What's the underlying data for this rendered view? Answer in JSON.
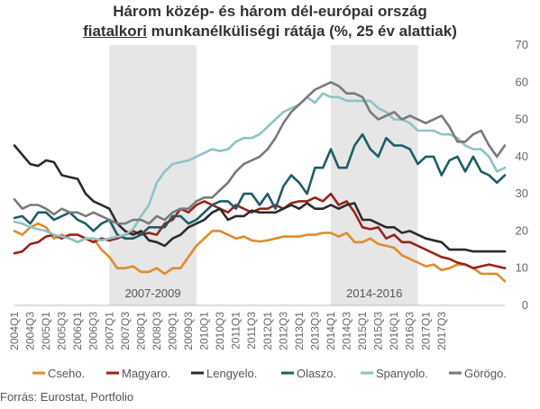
{
  "chart_data": {
    "type": "line",
    "title_line1": "Három közép- és három dél-európai ország",
    "title_line2_underlined": "fiatalkori",
    "title_line2_rest": " munkanélküliségi rátája (%, 25 év alattiak)",
    "source": "Forrás: Eurostat, Portfolio",
    "ylim": [
      0,
      70
    ],
    "y_ticks": [
      "0",
      "10",
      "20",
      "30",
      "40",
      "50",
      "60",
      "70"
    ],
    "x_ticks": [
      "2004Q1",
      "2004Q3",
      "2005Q1",
      "2005Q3",
      "2006Q1",
      "2006Q3",
      "2007Q1",
      "2007Q3",
      "2008Q1",
      "2008Q3",
      "2009Q1",
      "2009Q3",
      "2010Q1",
      "2010Q3",
      "2011Q1",
      "2011Q3",
      "2012Q1",
      "2012Q3",
      "2013Q1",
      "2013Q3",
      "2014Q1",
      "2014Q3",
      "2015Q1",
      "2015Q3",
      "2016Q1",
      "2016Q3",
      "2017Q1",
      "2017Q3"
    ],
    "shaded_periods": [
      {
        "label": "2007-2009",
        "start": "2007Q1",
        "end": "2009Q4"
      },
      {
        "label": "2014-2016",
        "start": "2014Q1",
        "end": "2016Q4"
      }
    ],
    "series": [
      {
        "name": "Cseho.",
        "color": "#e08a2e",
        "values": [
          20,
          19,
          21,
          22,
          21,
          18,
          19,
          18,
          17,
          18,
          18,
          15,
          13,
          10,
          10,
          10.5,
          9,
          9,
          10,
          8.5,
          10,
          10,
          13,
          16,
          18,
          20,
          20,
          19,
          18,
          18.5,
          17.5,
          17.2,
          17.5,
          18,
          18.5,
          18.5,
          18.5,
          19,
          19,
          19.5,
          19.5,
          18.5,
          19.5,
          17,
          17,
          18,
          16.5,
          16,
          15.5,
          13.5,
          12.5,
          11.5,
          10.5,
          11,
          9.5,
          10,
          11,
          11,
          10,
          8.5,
          8.5,
          8.5,
          6.5
        ]
      },
      {
        "name": "Magyaro.",
        "color": "#9b2318",
        "values": [
          14,
          14.5,
          16.5,
          17,
          18.5,
          19,
          18,
          19,
          19,
          18,
          17,
          18,
          17.5,
          18,
          19,
          20,
          19,
          19.5,
          19,
          22,
          23,
          26,
          25,
          27,
          28,
          27,
          26,
          25,
          27,
          26,
          25,
          26,
          26,
          27,
          26,
          27.5,
          28,
          28,
          29,
          28,
          30,
          27,
          28,
          25,
          21,
          20.5,
          21,
          18,
          19,
          17,
          17,
          16,
          15,
          14,
          13,
          12.5,
          11.5,
          11,
          10,
          10.5,
          11,
          10.5,
          10
        ]
      },
      {
        "name": "Lengyelo.",
        "color": "#2b2b2b",
        "values": [
          43,
          40.5,
          38,
          37.5,
          39,
          38.5,
          35,
          34.5,
          34,
          30,
          28,
          27,
          26,
          22,
          20,
          19,
          20,
          17.5,
          17,
          16,
          18,
          19,
          21,
          22,
          23,
          25,
          26,
          23,
          24,
          24,
          25.5,
          25,
          25,
          25,
          26,
          27,
          26,
          27.5,
          26,
          26,
          27,
          26,
          27,
          27.5,
          23,
          23,
          22,
          21,
          21,
          19.5,
          20,
          19,
          18,
          17.5,
          17,
          15,
          15,
          15,
          14.5,
          14.5,
          14.5,
          14.5,
          14.5
        ]
      },
      {
        "name": "Olaszo.",
        "color": "#1f5c66",
        "values": [
          23.5,
          24,
          22,
          25,
          25,
          23,
          24,
          25,
          23,
          22,
          20,
          22,
          23,
          19,
          18,
          18,
          19,
          21,
          21,
          21,
          24,
          24,
          22,
          23,
          25,
          27,
          28,
          28,
          26,
          30,
          30,
          27,
          30,
          26,
          32,
          35,
          33,
          30,
          37,
          37,
          42,
          37,
          37,
          43,
          46,
          42,
          40,
          45,
          43,
          43,
          42,
          38,
          40,
          40,
          35,
          39,
          40,
          36,
          40,
          36,
          35,
          33,
          35
        ]
      },
      {
        "name": "Spanyolo.",
        "color": "#8fc3c7",
        "values": [
          22.5,
          22,
          21,
          20.5,
          20,
          19,
          18.5,
          18,
          17,
          18,
          18,
          17.5,
          18,
          18.5,
          19,
          20.5,
          24,
          27,
          33,
          36,
          38,
          38.5,
          39,
          40,
          41,
          42,
          41.5,
          42,
          44,
          45,
          45,
          46,
          48,
          50,
          52,
          53,
          54,
          56,
          54.5,
          57,
          56,
          56,
          55,
          55,
          55,
          55,
          53,
          52,
          50,
          50,
          49,
          47,
          47,
          47,
          46,
          46,
          45,
          43,
          42,
          42,
          40,
          36,
          37
        ]
      },
      {
        "name": "Görögo.",
        "color": "#7a7a7a",
        "values": [
          28.5,
          26,
          27,
          27,
          26,
          24.5,
          26,
          25,
          25,
          24,
          25,
          24,
          23,
          22,
          22,
          23,
          23,
          22,
          24,
          23,
          25,
          26,
          26,
          28,
          29,
          29,
          31,
          33,
          36,
          38,
          39,
          40,
          42,
          45,
          49,
          52,
          54,
          56,
          58,
          59,
          60,
          59,
          57,
          57,
          56,
          52,
          50,
          51,
          52,
          50,
          51,
          50,
          49,
          50,
          51,
          48,
          44,
          44,
          46,
          47,
          43,
          40,
          43
        ]
      }
    ]
  }
}
